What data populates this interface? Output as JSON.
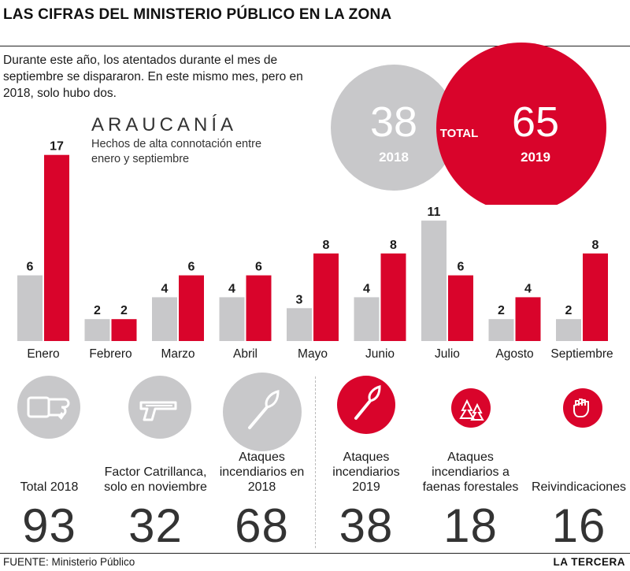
{
  "title": "LAS CIFRAS DEL MINISTERIO PÚBLICO EN LA ZONA",
  "intro": "Durante este año, los atentados durante el mes de septiembre se dispararon. En este mismo mes, pero en 2018, solo hubo dos.",
  "region": "ARAUCANÍA",
  "subtitle": "Hechos de alta connotación entre enero y septiembre",
  "totals": {
    "label": "TOTAL",
    "a": {
      "value": "38",
      "year": "2018"
    },
    "b": {
      "value": "65",
      "year": "2019"
    }
  },
  "colors": {
    "y2018": "#c8c8ca",
    "y2019": "#d9042b",
    "text": "#1a1a1a"
  },
  "chart_data": {
    "type": "bar",
    "categories": [
      "Enero",
      "Febrero",
      "Marzo",
      "Abril",
      "Mayo",
      "Junio",
      "Julio",
      "Agosto",
      "Septiembre"
    ],
    "series": [
      {
        "values": [
          6,
          2,
          4,
          4,
          3,
          4,
          11,
          2,
          2
        ]
      },
      {
        "values": [
          17,
          2,
          6,
          6,
          8,
          8,
          6,
          4,
          8
        ]
      }
    ]
  },
  "stats": [
    {
      "label": "Total 2018",
      "value": "93",
      "icon": "fist-punch-icon"
    },
    {
      "label": "Factor Catrillanca, solo en noviembre",
      "value": "32",
      "icon": "pistol-icon"
    },
    {
      "label": "Ataques incendiarios en 2018",
      "value": "68",
      "icon": "torch-icon"
    },
    {
      "label": "Ataques incendiarios 2019",
      "value": "38",
      "icon": "torch-icon"
    },
    {
      "label": "Ataques incendiarios a faenas forestales",
      "value": "18",
      "icon": "burning-trees-icon"
    },
    {
      "label": "Reivindicaciones",
      "value": "16",
      "icon": "raised-fist-icon"
    }
  ],
  "footer": {
    "source": "FUENTE: Ministerio Público",
    "brand": "LA TERCERA"
  }
}
